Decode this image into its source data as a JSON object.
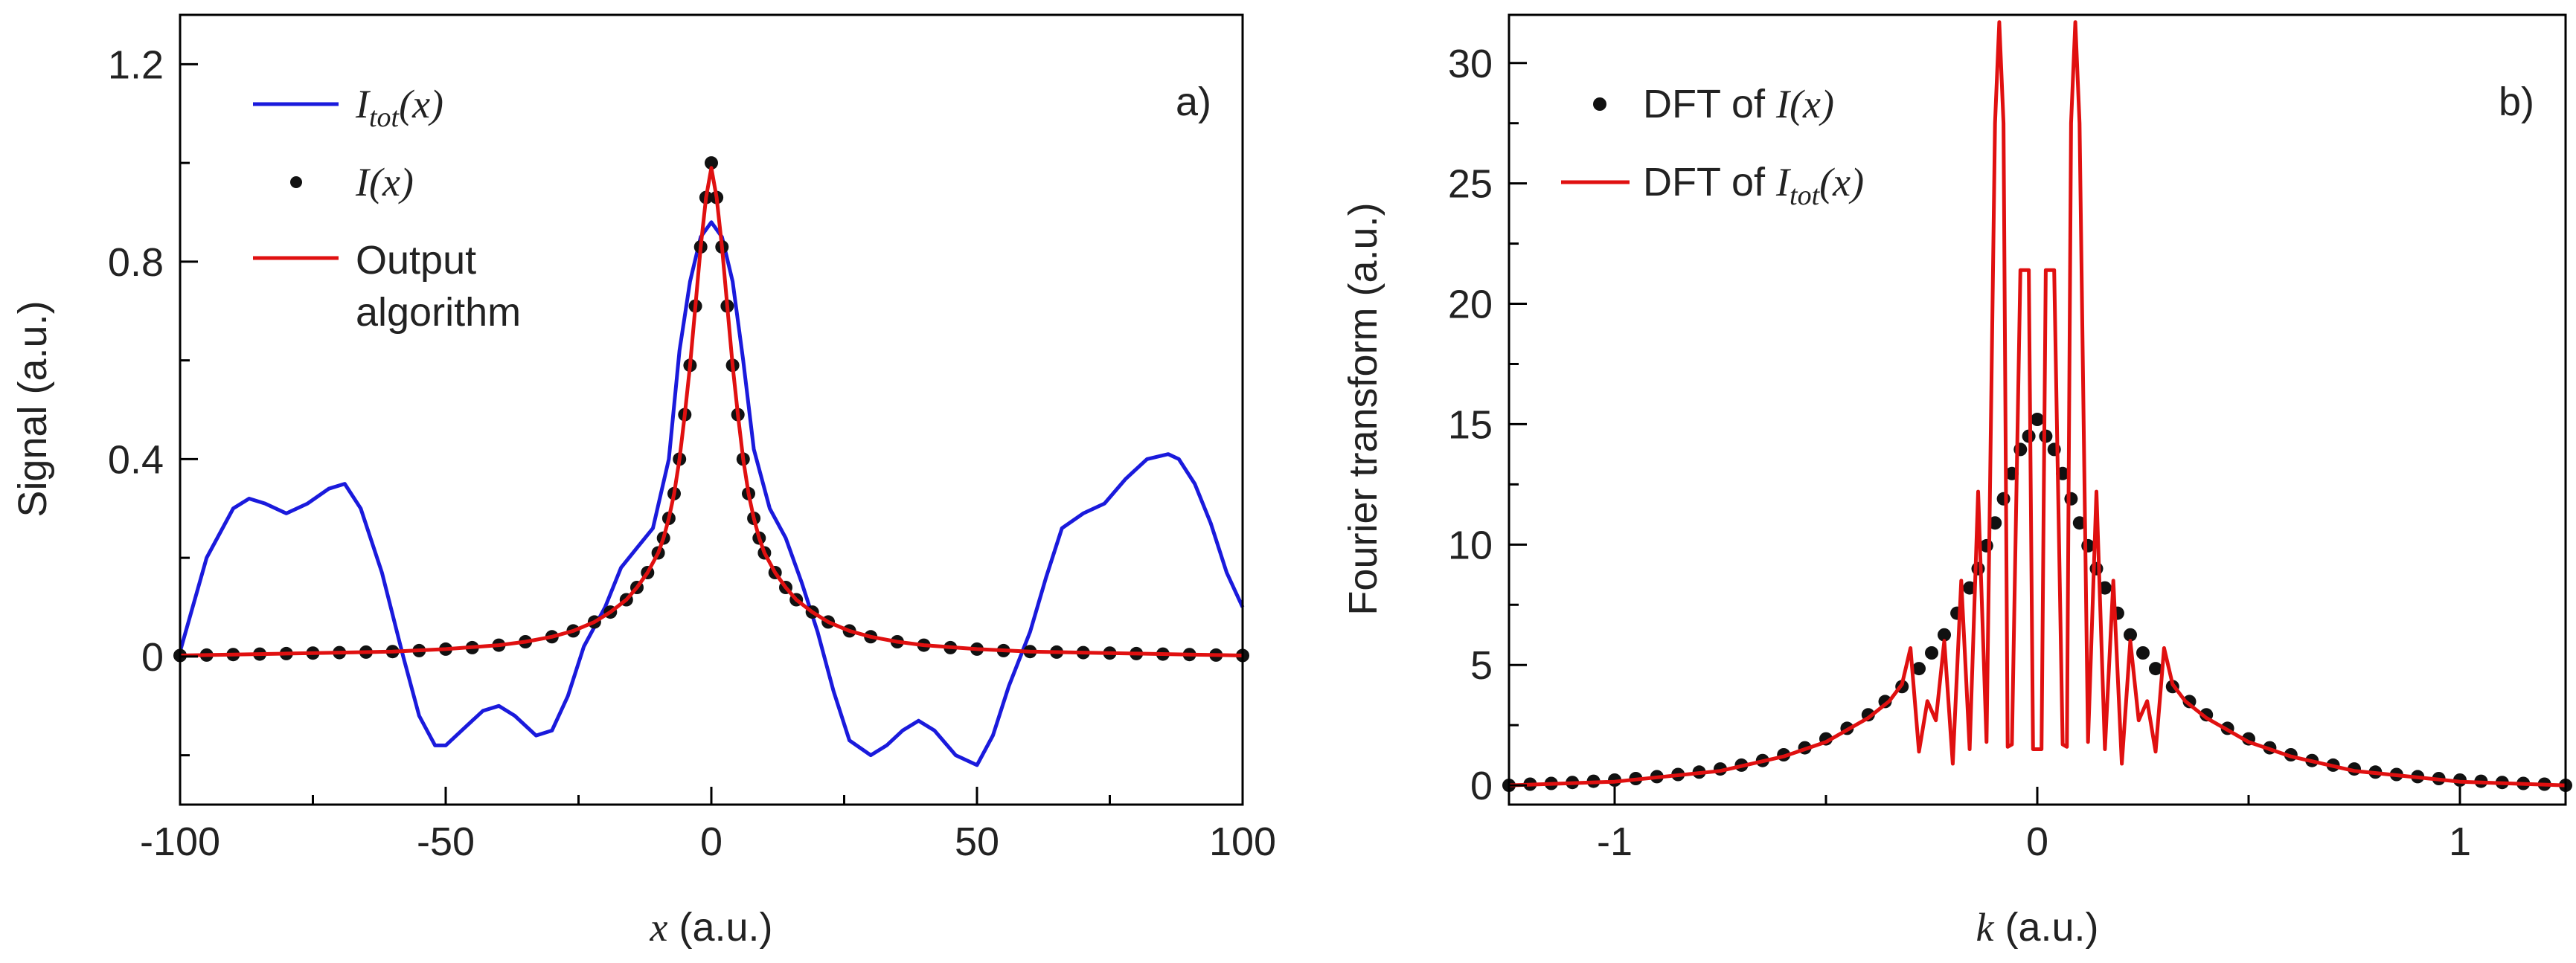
{
  "chart_data": [
    {
      "panel": "a)",
      "type": "line",
      "xlabel_var": "x",
      "xlabel_unit": " (a.u.)",
      "ylabel": "Signal (a.u.)",
      "xlim": [
        -100,
        100
      ],
      "ylim": [
        -0.3,
        1.3
      ],
      "xticks": [
        -100,
        -50,
        0,
        50,
        100
      ],
      "xtick_labels": [
        "-100",
        "-50",
        "0",
        "50",
        "100"
      ],
      "yticks": [
        0,
        0.4,
        0.8,
        1.2
      ],
      "ytick_labels": [
        "0",
        "0.4",
        "0.8",
        "1.2"
      ],
      "legend": [
        {
          "style": "line",
          "color": "#1a1adc",
          "label_base": "I",
          "label_sub": "tot",
          "label_tail": "(x)"
        },
        {
          "style": "dot",
          "color": "#111111",
          "label_base": "I",
          "label_sub": "",
          "label_tail": "(x)"
        },
        {
          "style": "line",
          "color": "#e01010",
          "label_lines": [
            "Output",
            "algorithm"
          ]
        }
      ],
      "series": [
        {
          "name": "I_tot(x)",
          "style": "line",
          "color": "#1a1adc",
          "x": [
            -100,
            -95,
            -90,
            -87,
            -84,
            -80,
            -76,
            -72,
            -69,
            -66,
            -62,
            -58,
            -55,
            -52,
            -50,
            -47,
            -43,
            -40,
            -37,
            -33,
            -30,
            -27,
            -24,
            -20,
            -17,
            -14,
            -11,
            -8,
            -6,
            -4,
            -2,
            0,
            2,
            4,
            6,
            8,
            11,
            14,
            17,
            20,
            23,
            26,
            30,
            33,
            36,
            39,
            42,
            46,
            50,
            53,
            56,
            60,
            63,
            66,
            70,
            74,
            78,
            82,
            86,
            88,
            91,
            94,
            97,
            100
          ],
          "y": [
            0.01,
            0.2,
            0.3,
            0.32,
            0.31,
            0.29,
            0.31,
            0.34,
            0.35,
            0.3,
            0.17,
            0.0,
            -0.12,
            -0.18,
            -0.18,
            -0.15,
            -0.11,
            -0.1,
            -0.12,
            -0.16,
            -0.15,
            -0.08,
            0.02,
            0.1,
            0.18,
            0.22,
            0.26,
            0.4,
            0.62,
            0.76,
            0.85,
            0.88,
            0.85,
            0.76,
            0.6,
            0.42,
            0.3,
            0.24,
            0.15,
            0.05,
            -0.07,
            -0.17,
            -0.2,
            -0.18,
            -0.15,
            -0.13,
            -0.15,
            -0.2,
            -0.22,
            -0.16,
            -0.06,
            0.05,
            0.16,
            0.26,
            0.29,
            0.31,
            0.36,
            0.4,
            0.41,
            0.4,
            0.35,
            0.27,
            0.17,
            0.1
          ]
        },
        {
          "name": "I(x)",
          "style": "dots",
          "color": "#111111",
          "x": [
            -100,
            -95,
            -90,
            -85,
            -80,
            -75,
            -70,
            -65,
            -60,
            -55,
            -50,
            -45,
            -40,
            -35,
            -30,
            -26,
            -22,
            -19,
            -16,
            -14,
            -12,
            -10,
            -9,
            -8,
            -7,
            -6,
            -5,
            -4,
            -3,
            -2,
            -1,
            0,
            1,
            2,
            3,
            4,
            5,
            6,
            7,
            8,
            9,
            10,
            12,
            14,
            16,
            19,
            22,
            26,
            30,
            35,
            40,
            45,
            50,
            55,
            60,
            65,
            70,
            75,
            80,
            85,
            90,
            95,
            100
          ],
          "y": [
            0.002,
            0.003,
            0.004,
            0.005,
            0.006,
            0.007,
            0.008,
            0.009,
            0.01,
            0.012,
            0.015,
            0.018,
            0.023,
            0.03,
            0.04,
            0.052,
            0.07,
            0.09,
            0.115,
            0.14,
            0.17,
            0.21,
            0.24,
            0.28,
            0.33,
            0.4,
            0.49,
            0.59,
            0.71,
            0.83,
            0.93,
            1.0,
            0.93,
            0.83,
            0.71,
            0.59,
            0.49,
            0.4,
            0.33,
            0.28,
            0.24,
            0.21,
            0.17,
            0.14,
            0.115,
            0.09,
            0.07,
            0.052,
            0.04,
            0.03,
            0.023,
            0.018,
            0.015,
            0.012,
            0.01,
            0.009,
            0.008,
            0.007,
            0.006,
            0.005,
            0.004,
            0.003,
            0.002
          ]
        },
        {
          "name": "Output algorithm",
          "style": "line",
          "color": "#e01010",
          "x": [
            -100,
            -90,
            -80,
            -70,
            -60,
            -50,
            -40,
            -35,
            -30,
            -26,
            -22,
            -19,
            -16,
            -14,
            -12,
            -10,
            -9,
            -8,
            -7,
            -6,
            -5,
            -4,
            -3,
            -2,
            -1,
            0,
            1,
            2,
            3,
            4,
            5,
            6,
            7,
            8,
            9,
            10,
            12,
            14,
            16,
            19,
            22,
            26,
            30,
            35,
            40,
            50,
            60,
            70,
            80,
            90,
            100
          ],
          "y": [
            0.002,
            0.004,
            0.006,
            0.008,
            0.01,
            0.015,
            0.023,
            0.03,
            0.04,
            0.052,
            0.07,
            0.09,
            0.115,
            0.14,
            0.17,
            0.21,
            0.24,
            0.28,
            0.33,
            0.4,
            0.49,
            0.59,
            0.71,
            0.83,
            0.93,
            0.99,
            0.93,
            0.83,
            0.71,
            0.59,
            0.49,
            0.4,
            0.33,
            0.28,
            0.24,
            0.21,
            0.17,
            0.14,
            0.115,
            0.09,
            0.07,
            0.052,
            0.04,
            0.03,
            0.023,
            0.015,
            0.01,
            0.008,
            0.006,
            0.004,
            0.002
          ]
        }
      ]
    },
    {
      "panel": "b)",
      "type": "line",
      "xlabel_var": "k",
      "xlabel_unit": " (a.u.)",
      "ylabel": "Fourier transform (a.u.)",
      "xlim": [
        -1.25,
        1.25
      ],
      "ylim": [
        -0.8,
        32
      ],
      "xticks": [
        -1,
        0,
        1
      ],
      "xtick_labels": [
        "-1",
        "0",
        "1"
      ],
      "yticks": [
        0,
        5,
        10,
        15,
        20,
        25,
        30
      ],
      "ytick_labels": [
        "0",
        "5",
        "10",
        "15",
        "20",
        "25",
        "30"
      ],
      "legend": [
        {
          "style": "dot",
          "color": "#111111",
          "label_prefix": "DFT of ",
          "label_base": "I",
          "label_sub": "",
          "label_tail": "(x)"
        },
        {
          "style": "line",
          "color": "#e01010",
          "label_prefix": "DFT of ",
          "label_base": "I",
          "label_sub": "tot",
          "label_tail": "(x)"
        }
      ],
      "series": [
        {
          "name": "DFT of I(x)",
          "style": "dots",
          "color": "#111111",
          "x": [
            -1.25,
            -1.2,
            -1.15,
            -1.1,
            -1.05,
            -1.0,
            -0.95,
            -0.9,
            -0.85,
            -0.8,
            -0.75,
            -0.7,
            -0.65,
            -0.6,
            -0.55,
            -0.5,
            -0.45,
            -0.4,
            -0.36,
            -0.32,
            -0.28,
            -0.25,
            -0.22,
            -0.19,
            -0.16,
            -0.14,
            -0.12,
            -0.1,
            -0.08,
            -0.06,
            -0.04,
            -0.02,
            0,
            0.02,
            0.04,
            0.06,
            0.08,
            0.1,
            0.12,
            0.14,
            0.16,
            0.19,
            0.22,
            0.25,
            0.28,
            0.32,
            0.36,
            0.4,
            0.45,
            0.5,
            0.55,
            0.6,
            0.65,
            0.7,
            0.75,
            0.8,
            0.85,
            0.9,
            0.95,
            1.0,
            1.05,
            1.1,
            1.15,
            1.2,
            1.25
          ],
          "y": [
            0.0,
            0.05,
            0.08,
            0.12,
            0.17,
            0.22,
            0.28,
            0.36,
            0.45,
            0.55,
            0.68,
            0.84,
            1.03,
            1.27,
            1.56,
            1.93,
            2.37,
            2.93,
            3.48,
            4.1,
            4.85,
            5.5,
            6.25,
            7.15,
            8.2,
            9.0,
            9.95,
            10.9,
            11.9,
            12.95,
            13.95,
            14.5,
            15.2,
            14.5,
            13.95,
            12.95,
            11.9,
            10.9,
            9.95,
            9.0,
            8.2,
            7.15,
            6.25,
            5.5,
            4.85,
            4.1,
            3.48,
            2.93,
            2.37,
            1.93,
            1.56,
            1.27,
            1.03,
            0.84,
            0.68,
            0.55,
            0.45,
            0.36,
            0.28,
            0.22,
            0.17,
            0.12,
            0.08,
            0.05,
            0.0
          ]
        },
        {
          "name": "DFT of I_tot(x)",
          "style": "line",
          "color": "#e01010",
          "x": [
            -1.25,
            -1.0,
            -0.75,
            -0.6,
            -0.5,
            -0.45,
            -0.4,
            -0.35,
            -0.32,
            -0.3,
            -0.28,
            -0.26,
            -0.24,
            -0.22,
            -0.2,
            -0.18,
            -0.16,
            -0.14,
            -0.12,
            -0.1,
            -0.09,
            -0.08,
            -0.07,
            -0.06,
            -0.04,
            -0.02,
            -0.01,
            0.01,
            0.02,
            0.04,
            0.06,
            0.07,
            0.08,
            0.09,
            0.1,
            0.12,
            0.14,
            0.16,
            0.18,
            0.2,
            0.22,
            0.24,
            0.26,
            0.28,
            0.3,
            0.32,
            0.35,
            0.4,
            0.45,
            0.5,
            0.6,
            0.75,
            1.0,
            1.25
          ],
          "y": [
            0.0,
            0.15,
            0.6,
            1.2,
            1.8,
            2.3,
            2.8,
            3.5,
            4.2,
            5.7,
            1.4,
            3.5,
            2.7,
            6.0,
            0.9,
            8.5,
            1.5,
            12.2,
            1.8,
            27.5,
            31.7,
            27.5,
            1.6,
            1.7,
            21.4,
            21.4,
            1.5,
            1.5,
            21.4,
            21.4,
            1.7,
            1.6,
            27.5,
            31.7,
            27.5,
            1.8,
            12.2,
            1.5,
            8.5,
            0.9,
            6.0,
            2.7,
            3.5,
            1.4,
            5.7,
            4.2,
            3.5,
            2.8,
            2.3,
            1.8,
            1.2,
            0.6,
            0.15,
            0.0
          ]
        }
      ]
    }
  ]
}
